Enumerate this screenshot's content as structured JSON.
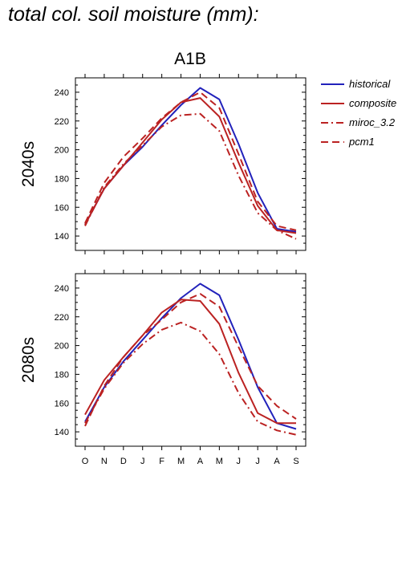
{
  "page": {
    "title": "total col. soil moisture (mm):"
  },
  "colors": {
    "historical": "#2222bb",
    "model": "#bb2222",
    "axis": "#000000"
  },
  "chart_data": {
    "type": "line",
    "title": "A1B",
    "categories": [
      "O",
      "N",
      "D",
      "J",
      "F",
      "M",
      "A",
      "M",
      "J",
      "J",
      "A",
      "S"
    ],
    "ylim": [
      130,
      250
    ],
    "yticks": [
      140,
      160,
      180,
      200,
      220,
      240
    ],
    "legend": {
      "placement": "right",
      "entries": [
        "historical",
        "composite",
        "miroc_3.2",
        "pcm1"
      ]
    },
    "panels": [
      {
        "label": "2040s",
        "series": [
          {
            "name": "historical",
            "style": "solid",
            "color": "#2222bb",
            "values": [
              148,
              173,
              189,
              202,
              217,
              231,
              243,
              235,
              204,
              170,
              145,
              143
            ]
          },
          {
            "name": "composite",
            "style": "solid",
            "color": "#bb2222",
            "values": [
              148,
              173,
              189,
              205,
              221,
              233,
              236,
              223,
              191,
              161,
              144,
              142
            ]
          },
          {
            "name": "miroc_3.2",
            "style": "dashdot",
            "color": "#bb2222",
            "values": [
              147,
              174,
              190,
              203,
              216,
              224,
              225,
              213,
              182,
              156,
              144,
              138
            ]
          },
          {
            "name": "pcm1",
            "style": "dash",
            "color": "#bb2222",
            "values": [
              149,
              177,
              195,
              208,
              222,
              233,
              240,
              229,
              197,
              164,
              147,
              144
            ]
          }
        ]
      },
      {
        "label": "2080s",
        "series": [
          {
            "name": "historical",
            "style": "solid",
            "color": "#2222bb",
            "values": [
              147,
              171,
              189,
              204,
              219,
              233,
              243,
              235,
              204,
              171,
              146,
              142
            ]
          },
          {
            "name": "composite",
            "style": "solid",
            "color": "#bb2222",
            "values": [
              152,
              176,
              192,
              207,
              223,
              232,
              231,
              215,
              181,
              153,
              146,
              146
            ]
          },
          {
            "name": "miroc_3.2",
            "style": "dashdot",
            "color": "#bb2222",
            "values": [
              146,
              170,
              188,
              201,
              211,
              216,
              210,
              194,
              167,
              147,
              141,
              138
            ]
          },
          {
            "name": "pcm1",
            "style": "dash",
            "color": "#bb2222",
            "values": [
              144,
              172,
              192,
              207,
              218,
              230,
              236,
              227,
              199,
              172,
              158,
              149
            ]
          }
        ]
      }
    ]
  }
}
